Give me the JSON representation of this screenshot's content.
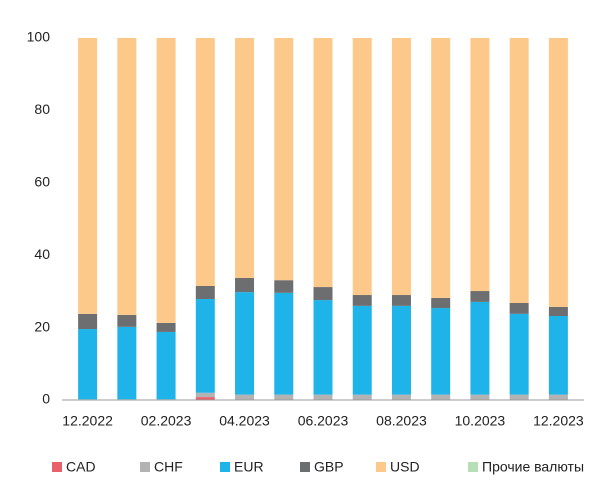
{
  "chart_data": {
    "type": "stacked_bar",
    "categories": [
      "12.2022",
      null,
      "02.2023",
      null,
      "04.2023",
      null,
      "06.2023",
      null,
      "08.2023",
      null,
      "10.2023",
      null,
      "12.2023"
    ],
    "series": [
      {
        "name": "CAD",
        "color": "#e8606a",
        "values": [
          0,
          0,
          0,
          0.8,
          0,
          0,
          0,
          0,
          0,
          0,
          0,
          0,
          0
        ]
      },
      {
        "name": "CHF",
        "color": "#b3b3b3",
        "values": [
          0.2,
          0.2,
          0.2,
          1.2,
          1.5,
          1.5,
          1.5,
          1.5,
          1.5,
          1.5,
          1.5,
          1.5,
          1.5
        ]
      },
      {
        "name": "EUR",
        "color": "#1eb4ea",
        "values": [
          19.4,
          20,
          18.6,
          25.9,
          28.3,
          28.1,
          26.1,
          24.5,
          24.5,
          23.9,
          25.6,
          22.3,
          21.7
        ]
      },
      {
        "name": "GBP",
        "color": "#6d6e70",
        "values": [
          4.2,
          3.3,
          2.5,
          3.6,
          3.9,
          3.5,
          3.6,
          3,
          3,
          2.8,
          3,
          3,
          2.5
        ]
      },
      {
        "name": "USD",
        "color": "#fdc98a",
        "values": [
          76.2,
          76.5,
          78.7,
          68.5,
          66.3,
          66.9,
          68.8,
          71,
          71,
          71.8,
          69.9,
          73.2,
          74.3
        ]
      },
      {
        "name": "Прочие валюты",
        "color": "#b7dfb5",
        "values": [
          0,
          0,
          0,
          0,
          0,
          0,
          0,
          0,
          0,
          0,
          0,
          0,
          0
        ]
      }
    ],
    "ylim": [
      0,
      100
    ],
    "yticks": [
      0,
      20,
      40,
      60,
      80,
      100
    ],
    "grid": false,
    "legend": "bottom"
  }
}
